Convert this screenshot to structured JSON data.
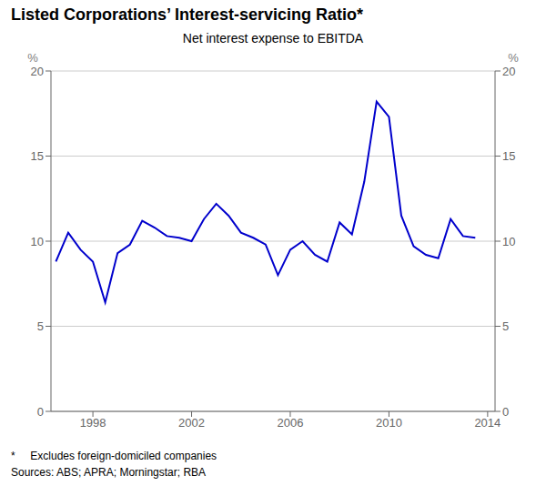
{
  "chart_data": {
    "type": "line",
    "title": "Listed Corporations’ Interest-servicing Ratio*",
    "subtitle": "Net interest expense to EBITDA",
    "ylabel": "%",
    "y2label": "%",
    "annotations": [
      "*     Excludes foreign-domiciled companies",
      "Sources: ABS; APRA; Morningstar; RBA"
    ],
    "x": [
      1996.5,
      1997.0,
      1997.5,
      1998.0,
      1998.5,
      1999.0,
      1999.5,
      2000.0,
      2000.5,
      2001.0,
      2001.5,
      2002.0,
      2002.5,
      2003.0,
      2003.5,
      2004.0,
      2004.5,
      2005.0,
      2005.5,
      2006.0,
      2006.5,
      2007.0,
      2007.5,
      2008.0,
      2008.5,
      2009.0,
      2009.5,
      2010.0,
      2010.5,
      2011.0,
      2011.5,
      2012.0,
      2012.5,
      2013.0,
      2013.5
    ],
    "values": [
      8.8,
      10.5,
      9.5,
      8.8,
      6.4,
      9.3,
      9.8,
      11.2,
      10.8,
      10.3,
      10.2,
      10.0,
      11.3,
      12.2,
      11.5,
      10.5,
      10.2,
      9.8,
      8.0,
      9.5,
      10.0,
      9.2,
      8.8,
      11.1,
      10.4,
      13.5,
      18.2,
      17.3,
      11.5,
      9.7,
      9.2,
      9.0,
      11.3,
      10.3,
      10.2
    ],
    "color": "#0000cc",
    "xlim": [
      1996.3,
      2014.3
    ],
    "xticks": [
      1998,
      2002,
      2006,
      2010,
      2014
    ],
    "ylim": [
      0,
      20
    ],
    "yticks": [
      0,
      5,
      10,
      15,
      20
    ],
    "y2lim": [
      0,
      20
    ],
    "y2ticks": [
      0,
      5,
      10,
      15,
      20
    ],
    "grid": true
  }
}
